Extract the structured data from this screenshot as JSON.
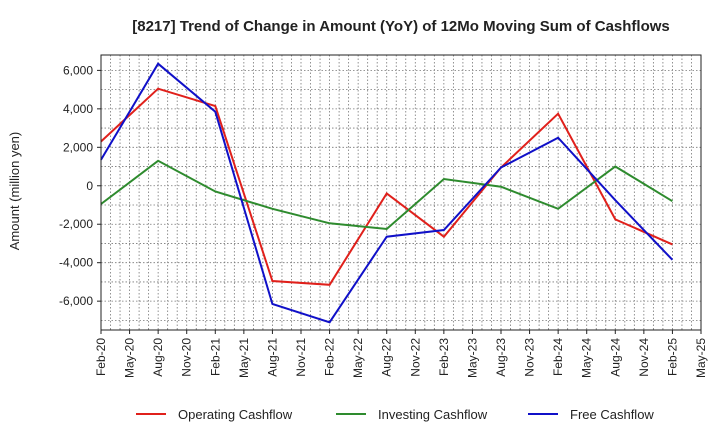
{
  "chart_data": {
    "type": "line",
    "title": "[8217]  Trend of Change in Amount (YoY) of 12Mo Moving Sum of Cashflows",
    "xlabel": "",
    "ylabel": "Amount (million yen)",
    "ylim": [
      -7500,
      6800
    ],
    "yticks": [
      6000,
      4000,
      2000,
      0,
      -2000,
      -4000,
      -6000
    ],
    "ytick_labels": [
      "6,000",
      "4,000",
      "2,000",
      "0",
      "-2,000",
      "-4,000",
      "-6,000"
    ],
    "categories": [
      "Feb-20",
      "May-20",
      "Aug-20",
      "Nov-20",
      "Feb-21",
      "May-21",
      "Aug-21",
      "Nov-21",
      "Feb-22",
      "May-22",
      "Aug-22",
      "Nov-22",
      "Feb-23",
      "May-23",
      "Aug-23",
      "Nov-23",
      "Feb-24",
      "May-24",
      "Aug-24",
      "Nov-24",
      "Feb-25",
      "May-25"
    ],
    "series": [
      {
        "name": "Operating Cashflow",
        "color": "#e0201b",
        "values": [
          2300,
          null,
          5050,
          null,
          4150,
          null,
          -4950,
          null,
          -5150,
          null,
          -400,
          null,
          -2650,
          null,
          950,
          null,
          3750,
          null,
          -1750,
          null,
          -3050,
          null
        ]
      },
      {
        "name": "Investing Cashflow",
        "color": "#2e8b2e",
        "values": [
          -950,
          null,
          1300,
          null,
          -300,
          null,
          -1200,
          null,
          -1950,
          null,
          -2250,
          null,
          350,
          null,
          -50,
          null,
          -1200,
          null,
          1000,
          null,
          -800,
          null
        ]
      },
      {
        "name": "Free Cashflow",
        "color": "#1010c8",
        "values": [
          1350,
          null,
          6350,
          null,
          3850,
          null,
          -6150,
          null,
          -7100,
          null,
          -2650,
          null,
          -2300,
          null,
          950,
          null,
          2500,
          null,
          -750,
          null,
          -3850,
          null
        ]
      }
    ],
    "grid": true,
    "legend": "bottom"
  }
}
